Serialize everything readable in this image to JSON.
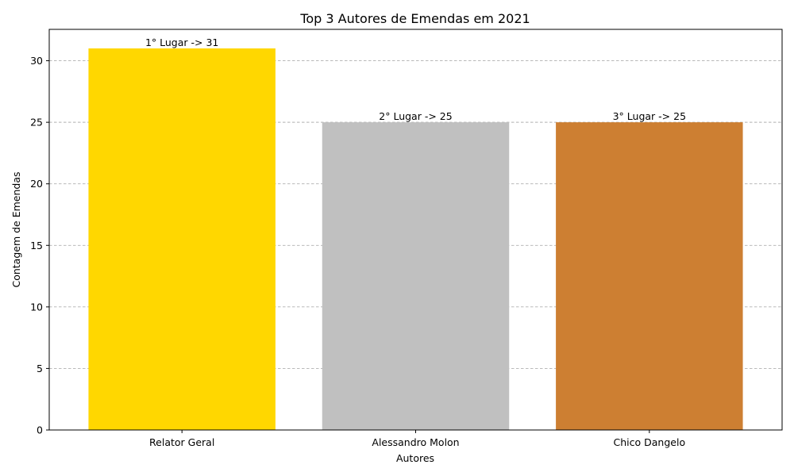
{
  "chart_data": {
    "type": "bar",
    "title": "Top 3 Autores de Emendas em 2021",
    "xlabel": "Autores",
    "ylabel": "Contagem de Emendas",
    "categories": [
      "Relator Geral",
      "Alessandro Molon",
      "Chico Dangelo"
    ],
    "values": [
      31,
      25,
      25
    ],
    "bar_colors": [
      "#FFD700",
      "#C0C0C0",
      "#CD7F32"
    ],
    "data_labels": [
      "1° Lugar -> 31",
      "2° Lugar -> 25",
      "3° Lugar -> 25"
    ],
    "ylim": [
      0,
      32.55
    ],
    "yticks": [
      0,
      5,
      10,
      15,
      20,
      25,
      30
    ],
    "grid": "y-dashed",
    "legend": "none"
  }
}
